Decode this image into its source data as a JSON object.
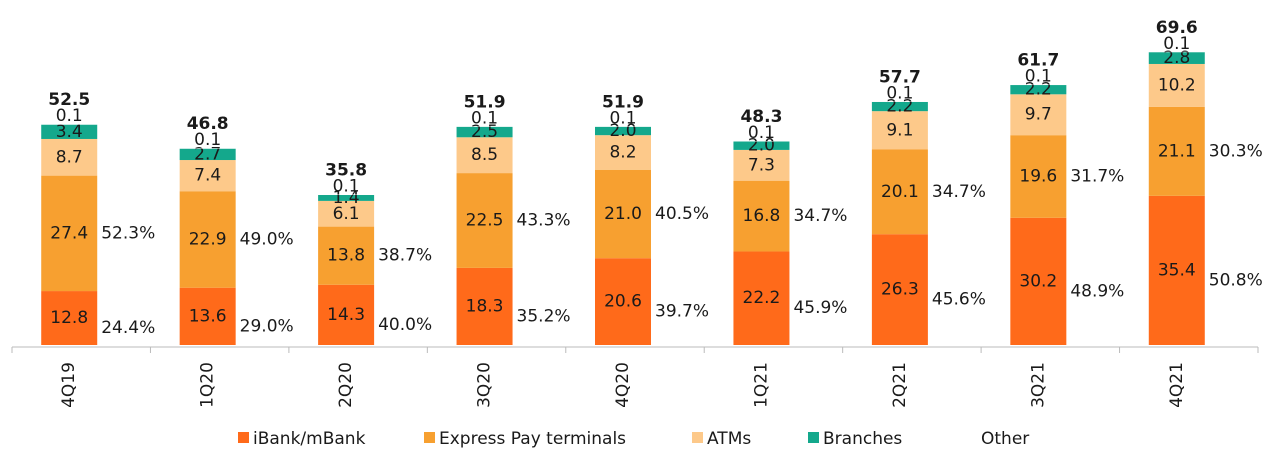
{
  "chart_data": {
    "type": "bar",
    "stacked": true,
    "categories": [
      "4Q19",
      "1Q20",
      "2Q20",
      "3Q20",
      "4Q20",
      "1Q21",
      "2Q21",
      "3Q21",
      "4Q21"
    ],
    "series": [
      {
        "name": "iBank/mBank",
        "color": "#ff6a1a",
        "values": [
          12.8,
          13.6,
          14.3,
          18.3,
          20.6,
          22.2,
          26.3,
          30.2,
          35.4
        ],
        "value_labels": [
          "12.8",
          "13.6",
          "14.3",
          "18.3",
          "20.6",
          "22.2",
          "26.3",
          "30.2",
          "35.4"
        ]
      },
      {
        "name": "Express Pay terminals",
        "color": "#f7a030",
        "values": [
          27.4,
          22.9,
          13.8,
          22.5,
          21.0,
          16.8,
          20.1,
          19.6,
          21.1
        ],
        "value_labels": [
          "27.4",
          "22.9",
          "13.8",
          "22.5",
          "21.0",
          "16.8",
          "20.1",
          "19.6",
          "21.1"
        ]
      },
      {
        "name": "ATMs",
        "color": "#fdc98a",
        "values": [
          8.7,
          7.4,
          6.1,
          8.5,
          8.2,
          7.3,
          9.1,
          9.7,
          10.2
        ],
        "value_labels": [
          "8.7",
          "7.4",
          "6.1",
          "8.5",
          "8.2",
          "7.3",
          "9.1",
          "9.7",
          "10.2"
        ]
      },
      {
        "name": "Branches",
        "color": "#14a88c",
        "values": [
          3.4,
          2.7,
          1.4,
          2.5,
          2.0,
          2.0,
          2.2,
          2.2,
          2.8
        ],
        "value_labels": [
          "3.4",
          "2.7",
          "1.4",
          "2.5",
          "2.0",
          "2.0",
          "2.2",
          "2.2",
          "2.8"
        ]
      },
      {
        "name": "Other",
        "color": "#ffffff",
        "values": [
          0.1,
          0.1,
          0.1,
          0.1,
          0.1,
          0.1,
          0.1,
          0.1,
          0.1
        ],
        "value_labels": [
          "0.1",
          "0.1",
          "0.1",
          "0.1",
          "0.1",
          "0.1",
          "0.1",
          "0.1",
          "0.1"
        ]
      }
    ],
    "totals": [
      52.5,
      46.8,
      35.8,
      51.9,
      51.9,
      48.3,
      57.7,
      61.7,
      69.6
    ],
    "ibank_share": {
      "values": [
        24.4,
        29.0,
        40.0,
        35.2,
        39.7,
        45.9,
        45.6,
        48.9,
        50.8
      ],
      "value_labels": [
        "24.4%",
        "29.0%",
        "40.0%",
        "35.2%",
        "39.7%",
        "45.9%",
        "45.6%",
        "48.9%",
        "50.8%"
      ]
    },
    "express_share": {
      "values": [
        52.3,
        49.0,
        38.7,
        43.3,
        40.5,
        34.7,
        34.7,
        31.7,
        30.3
      ],
      "value_labels": [
        "52.3%",
        "49.0%",
        "38.7%",
        "43.3%",
        "40.5%",
        "34.7%",
        "34.7%",
        "31.7%",
        "30.3%"
      ]
    },
    "ylim": [
      0,
      75
    ],
    "legend": "bottom"
  }
}
